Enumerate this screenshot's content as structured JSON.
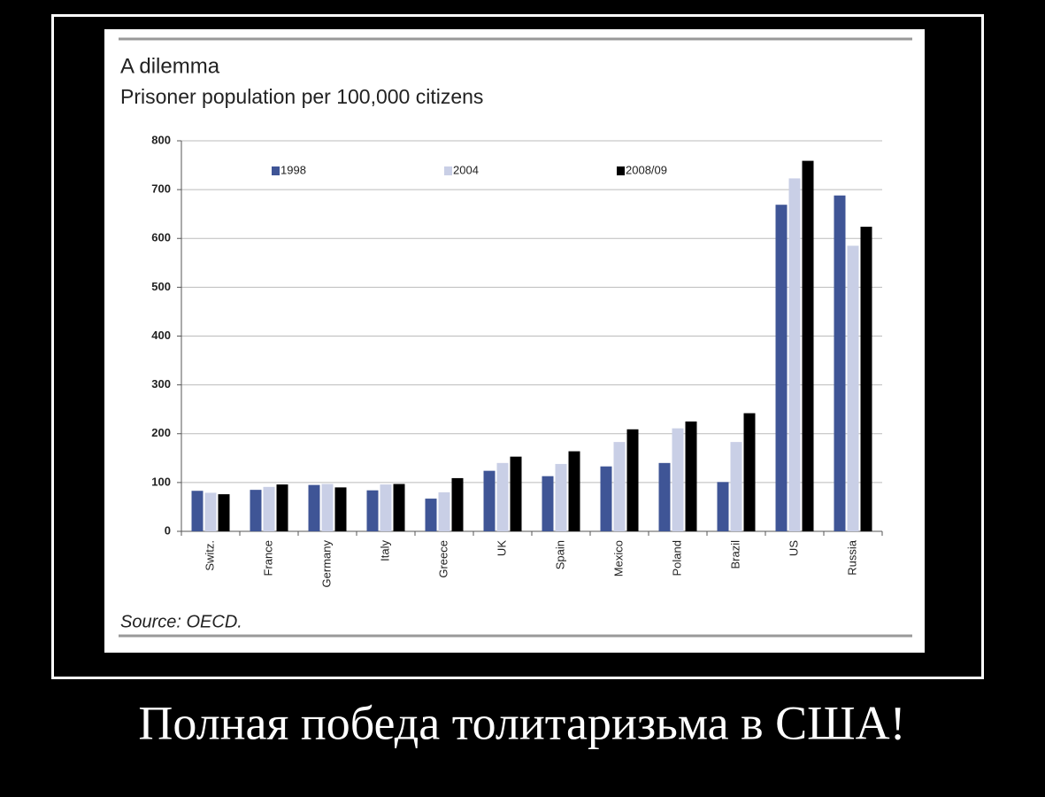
{
  "chart_data": {
    "type": "bar",
    "title": "A dilemma",
    "subtitle": "Prisoner population per 100,000 citizens",
    "source": "Source: OECD.",
    "categories": [
      "Switz.",
      "France",
      "Germany",
      "Italy",
      "Greece",
      "UK",
      "Spain",
      "Mexico",
      "Poland",
      "Brazil",
      "US",
      "Russia"
    ],
    "series": [
      {
        "name": "1998",
        "color": "#3f5596",
        "values": [
          83,
          85,
          95,
          84,
          67,
          124,
          113,
          133,
          140,
          101,
          669,
          688
        ]
      },
      {
        "name": "2004",
        "color": "#c9cfe6",
        "values": [
          79,
          91,
          97,
          96,
          80,
          140,
          138,
          183,
          211,
          183,
          723,
          585
        ]
      },
      {
        "name": "2008/09",
        "color": "#000000",
        "values": [
          76,
          96,
          90,
          97,
          109,
          153,
          164,
          209,
          225,
          242,
          759,
          624
        ]
      }
    ],
    "ylim": [
      0,
      800
    ],
    "yticks": [
      0,
      100,
      200,
      300,
      400,
      500,
      600,
      700,
      800
    ],
    "grid": true,
    "legend": "top"
  },
  "caption": "Полная победа толитаризьма в США!"
}
